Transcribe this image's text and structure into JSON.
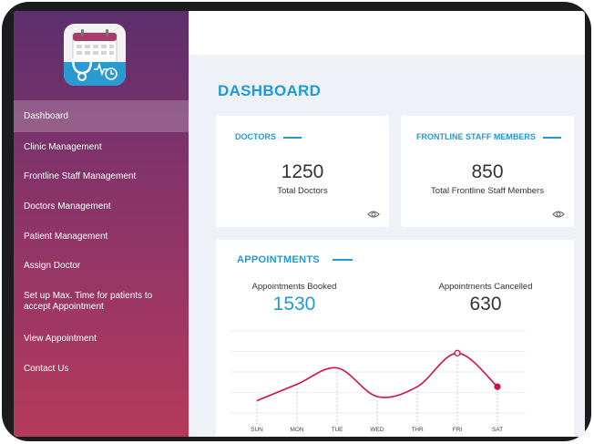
{
  "sidebar": {
    "items": [
      {
        "label": "Dashboard",
        "active": true
      },
      {
        "label": "Clinic Management"
      },
      {
        "label": "Frontline Staff Management"
      },
      {
        "label": "Doctors Management"
      },
      {
        "label": "Patient Management"
      },
      {
        "label": "Assign Doctor"
      },
      {
        "label": "Set up Max. Time for patients to accept Appointment"
      },
      {
        "label": "View Appointment"
      },
      {
        "label": "Contact Us"
      }
    ]
  },
  "page_title": "DASHBOARD",
  "cards": {
    "doctors": {
      "title": "DOCTORS",
      "value": "1250",
      "caption": "Total Doctors"
    },
    "staff": {
      "title": "FRONTLINE STAFF MEMBERS",
      "value": "850",
      "caption": "Total  Frontline Staff Members"
    }
  },
  "appointments": {
    "title": "APPOINTMENTS",
    "booked_label": "Appointments Booked",
    "booked_value": "1530",
    "cancelled_label": "Appointments Cancelled",
    "cancelled_value": "630"
  },
  "colors": {
    "accent": "#1f9ad6",
    "line": "#d0104a",
    "sidebar_top": "#5c2f6d",
    "sidebar_bottom": "#b53a5a"
  },
  "chart_data": {
    "type": "line",
    "categories": [
      "SUN",
      "MON",
      "TUE",
      "WED",
      "THR",
      "FRI",
      "SAT"
    ],
    "values": [
      1.5,
      3.5,
      5.5,
      2.0,
      3.2,
      7.3,
      3.2
    ],
    "ylim": [
      0,
      10
    ],
    "grid": true,
    "highlighted": [
      "FRI",
      "SAT"
    ]
  }
}
